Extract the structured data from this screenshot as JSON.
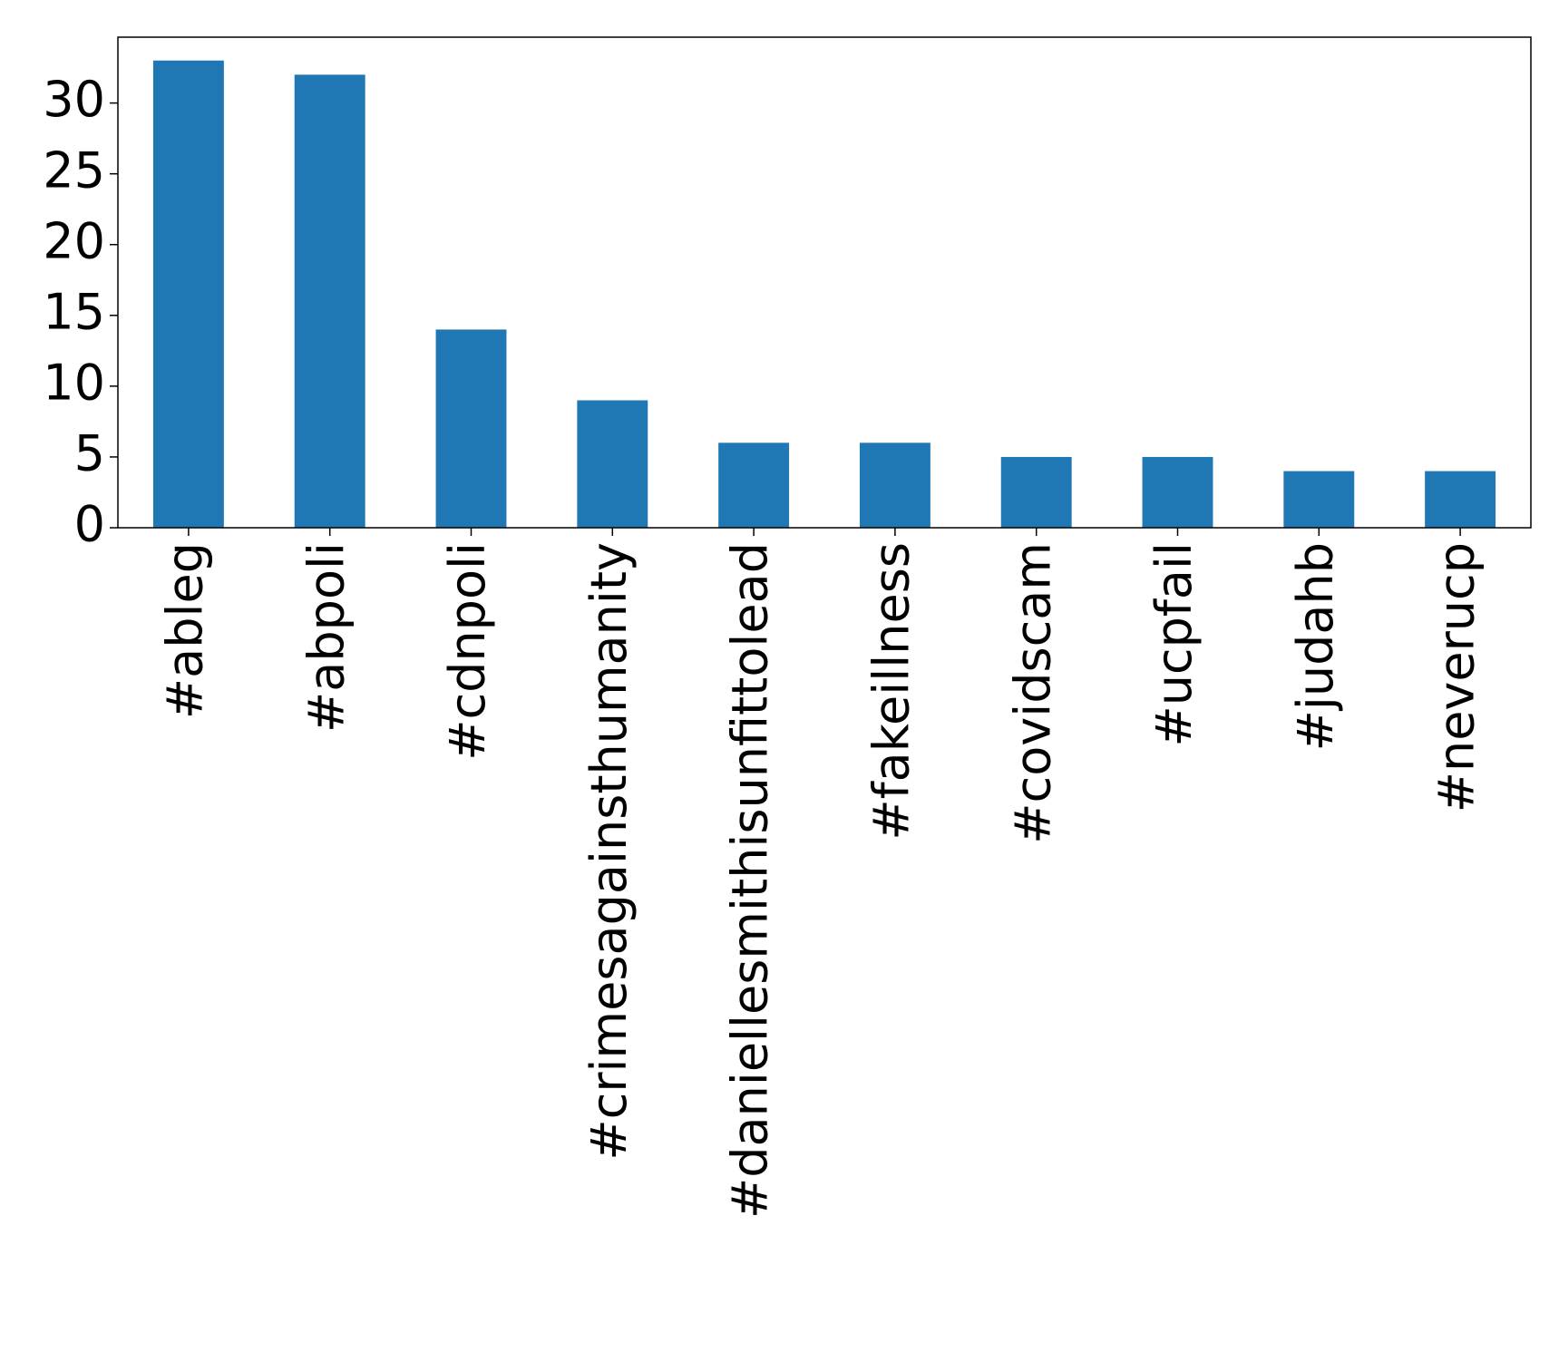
{
  "chart_data": {
    "type": "bar",
    "categories": [
      "#ableg",
      "#abpoli",
      "#cdnpoli",
      "#crimesagainsthumanity",
      "#daniellesmithisunfittolead",
      "#fakeillness",
      "#covidscam",
      "#ucpfail",
      "#judahb",
      "#neverucp"
    ],
    "values": [
      33,
      32,
      14,
      9,
      6,
      6,
      5,
      5,
      4,
      4
    ],
    "color": "#1f77b4",
    "ylim": [
      0,
      34.65
    ],
    "yticks": [
      0,
      5,
      10,
      15,
      20,
      25,
      30
    ],
    "grid": false
  }
}
